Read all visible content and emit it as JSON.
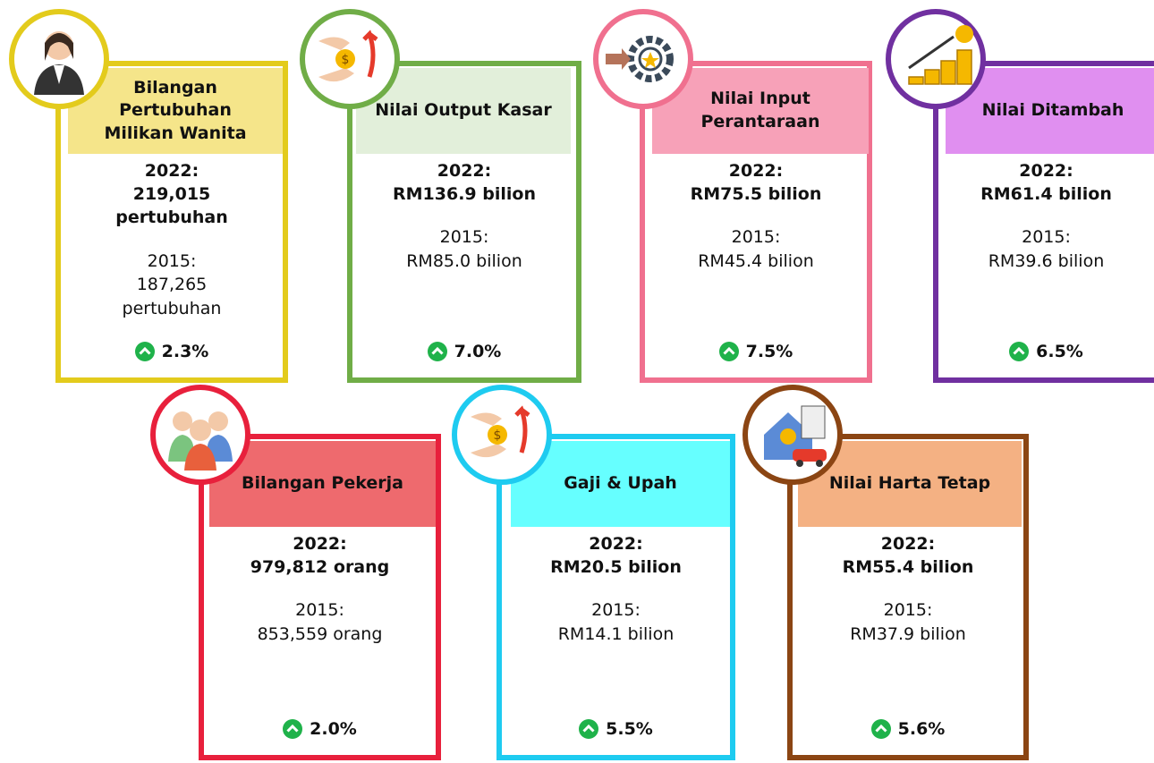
{
  "cards": [
    {
      "title": "Bilangan Pertubuhan Milikan Wanita",
      "current_year": "2022:",
      "current_value": "219,015 pertubuhan",
      "previous_year": "2015:",
      "previous_value": "187,265 pertubuhan",
      "growth": "2.3%"
    },
    {
      "title": "Nilai Output Kasar",
      "current_year": "2022:",
      "current_value": "RM136.9 bilion",
      "previous_year": "2015:",
      "previous_value": "RM85.0 bilion",
      "growth": "7.0%"
    },
    {
      "title": "Nilai Input Perantaraan",
      "current_year": "2022:",
      "current_value": "RM75.5 bilion",
      "previous_year": "2015:",
      "previous_value": "RM45.4 bilion",
      "growth": "7.5%"
    },
    {
      "title": "Nilai Ditambah",
      "current_year": "2022:",
      "current_value": "RM61.4 bilion",
      "previous_year": "2015:",
      "previous_value": "RM39.6 bilion",
      "growth": "6.5%"
    },
    {
      "title": "Bilangan Pekerja",
      "current_year": "2022:",
      "current_value": "979,812 orang",
      "previous_year": "2015:",
      "previous_value": "853,559 orang",
      "growth": "2.0%"
    },
    {
      "title": "Gaji & Upah",
      "current_year": "2022:",
      "current_value": "RM20.5 bilion",
      "previous_year": "2015:",
      "previous_value": "RM14.1 bilion",
      "growth": "5.5%"
    },
    {
      "title": "Nilai Harta Tetap",
      "current_year": "2022:",
      "current_value": "RM55.4 bilion",
      "previous_year": "2015:",
      "previous_value": "RM37.9 bilion",
      "growth": "5.6%"
    }
  ]
}
